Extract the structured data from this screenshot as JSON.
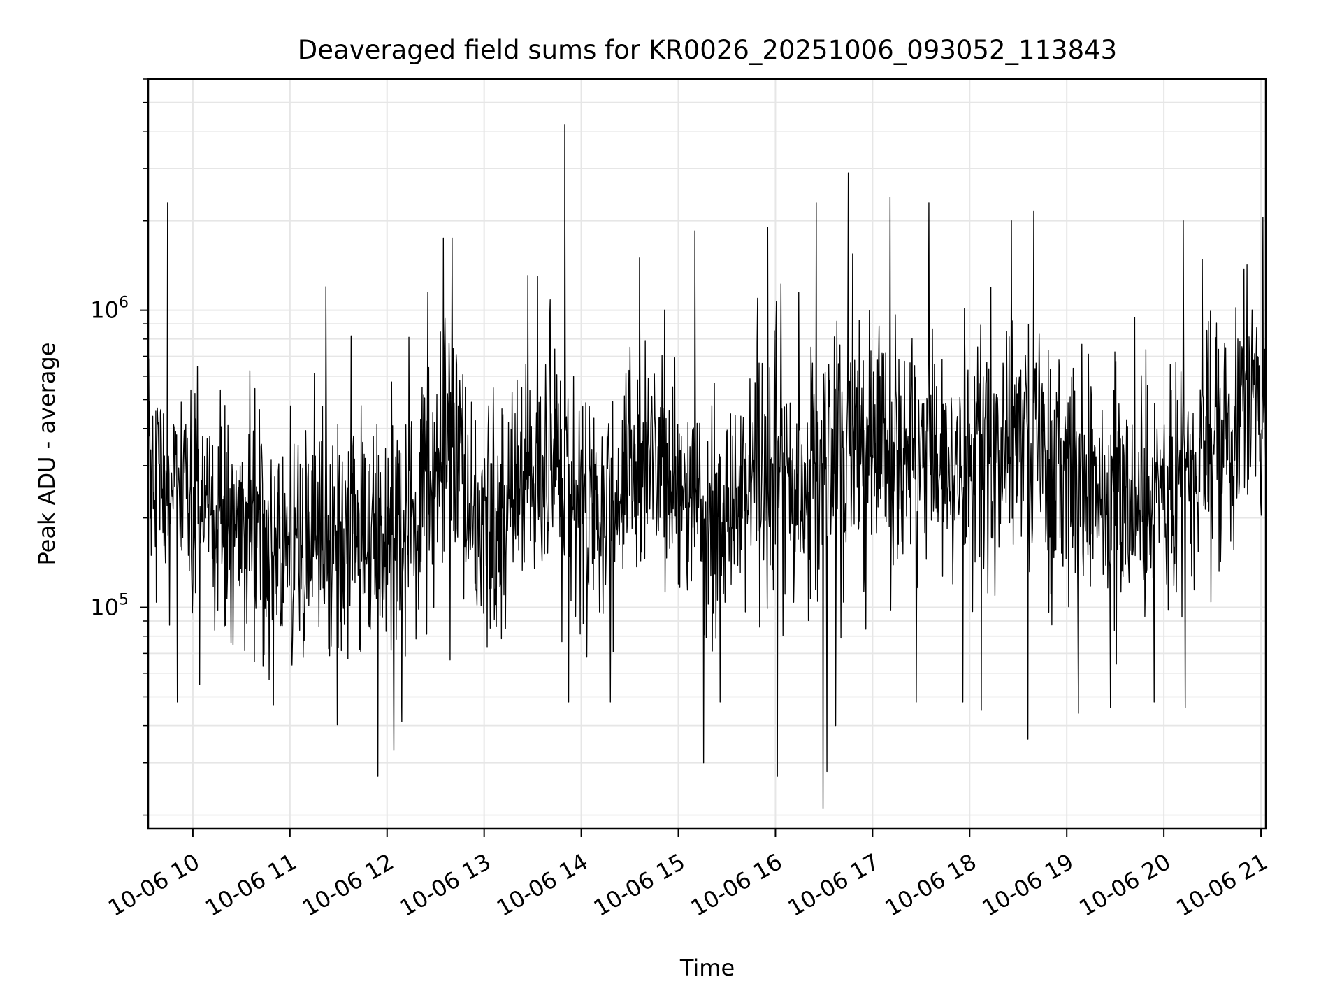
{
  "chart_data": {
    "type": "line",
    "title": "Deaveraged field sums for KR0026_20251006_093052_113843",
    "xlabel": "Time",
    "ylabel": "Peak ADU - average",
    "yscale": "log",
    "ylim": [
      18000,
      6000000
    ],
    "xlim_hours": [
      9.54,
      21.05
    ],
    "grid": true,
    "line_color": "#000000",
    "grid_color": "#e6e6e6",
    "x_ticks": [
      {
        "hour": 10,
        "label": "10-06 10"
      },
      {
        "hour": 11,
        "label": "10-06 11"
      },
      {
        "hour": 12,
        "label": "10-06 12"
      },
      {
        "hour": 13,
        "label": "10-06 13"
      },
      {
        "hour": 14,
        "label": "10-06 14"
      },
      {
        "hour": 15,
        "label": "10-06 15"
      },
      {
        "hour": 16,
        "label": "10-06 16"
      },
      {
        "hour": 17,
        "label": "10-06 17"
      },
      {
        "hour": 18,
        "label": "10-06 18"
      },
      {
        "hour": 19,
        "label": "10-06 19"
      },
      {
        "hour": 20,
        "label": "10-06 20"
      },
      {
        "hour": 21,
        "label": "10-06 21"
      }
    ],
    "y_ticks": [
      {
        "value": 100000,
        "base": "10",
        "exp": "5"
      },
      {
        "value": 1000000,
        "base": "10",
        "exp": "6"
      }
    ],
    "series": [
      {
        "name": "Peak ADU - average",
        "baseline": [
          [
            9.54,
            350000
          ],
          [
            9.7,
            250000
          ],
          [
            10.0,
            200000
          ],
          [
            10.5,
            180000
          ],
          [
            11.0,
            175000
          ],
          [
            11.5,
            165000
          ],
          [
            12.0,
            160000
          ],
          [
            12.3,
            190000
          ],
          [
            12.6,
            360000
          ],
          [
            12.75,
            220000
          ],
          [
            13.0,
            190000
          ],
          [
            13.3,
            240000
          ],
          [
            13.6,
            300000
          ],
          [
            14.0,
            230000
          ],
          [
            14.3,
            210000
          ],
          [
            14.6,
            330000
          ],
          [
            15.0,
            250000
          ],
          [
            15.3,
            200000
          ],
          [
            15.6,
            220000
          ],
          [
            15.9,
            290000
          ],
          [
            16.2,
            250000
          ],
          [
            16.5,
            280000
          ],
          [
            16.8,
            350000
          ],
          [
            17.2,
            320000
          ],
          [
            17.6,
            300000
          ],
          [
            18.0,
            310000
          ],
          [
            18.3,
            400000
          ],
          [
            18.7,
            380000
          ],
          [
            19.0,
            300000
          ],
          [
            19.4,
            260000
          ],
          [
            19.8,
            240000
          ],
          [
            20.2,
            300000
          ],
          [
            20.6,
            380000
          ],
          [
            21.05,
            500000
          ]
        ],
        "spikes": [
          {
            "hour": 9.74,
            "value": 2300000
          },
          {
            "hour": 9.84,
            "value": 48000
          },
          {
            "hour": 10.07,
            "value": 55000
          },
          {
            "hour": 10.83,
            "value": 47000
          },
          {
            "hour": 11.37,
            "value": 1200000
          },
          {
            "hour": 11.63,
            "value": 820000
          },
          {
            "hour": 12.07,
            "value": 33000
          },
          {
            "hour": 12.42,
            "value": 1150000
          },
          {
            "hour": 12.58,
            "value": 1750000
          },
          {
            "hour": 12.67,
            "value": 1750000
          },
          {
            "hour": 13.55,
            "value": 1300000
          },
          {
            "hour": 13.83,
            "value": 4200000
          },
          {
            "hour": 13.87,
            "value": 48000
          },
          {
            "hour": 14.3,
            "value": 48000
          },
          {
            "hour": 14.6,
            "value": 1500000
          },
          {
            "hour": 15.17,
            "value": 1850000
          },
          {
            "hour": 15.26,
            "value": 30000
          },
          {
            "hour": 15.43,
            "value": 48000
          },
          {
            "hour": 15.92,
            "value": 1900000
          },
          {
            "hour": 16.02,
            "value": 27000
          },
          {
            "hour": 16.42,
            "value": 2300000
          },
          {
            "hour": 16.49,
            "value": 21000
          },
          {
            "hour": 16.53,
            "value": 28000
          },
          {
            "hour": 16.62,
            "value": 40000
          },
          {
            "hour": 16.75,
            "value": 2900000
          },
          {
            "hour": 17.18,
            "value": 2400000
          },
          {
            "hour": 17.45,
            "value": 48000
          },
          {
            "hour": 17.58,
            "value": 2300000
          },
          {
            "hour": 17.93,
            "value": 48000
          },
          {
            "hour": 18.12,
            "value": 45000
          },
          {
            "hour": 18.43,
            "value": 2000000
          },
          {
            "hour": 18.6,
            "value": 36000
          },
          {
            "hour": 18.66,
            "value": 2150000
          },
          {
            "hour": 19.12,
            "value": 44000
          },
          {
            "hour": 19.45,
            "value": 46000
          },
          {
            "hour": 19.9,
            "value": 48000
          },
          {
            "hour": 20.2,
            "value": 2000000
          },
          {
            "hour": 20.22,
            "value": 46000
          },
          {
            "hour": 21.02,
            "value": 2050000
          }
        ]
      }
    ]
  }
}
